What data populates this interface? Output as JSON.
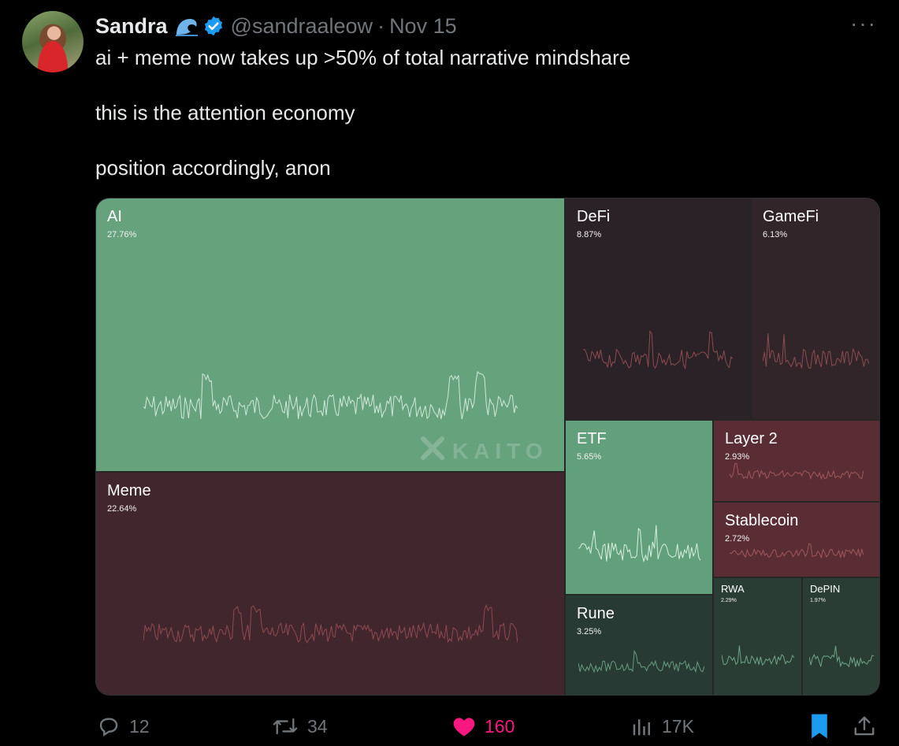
{
  "tweet": {
    "author_name": "Sandra",
    "handle": "@sandraaleow",
    "separator": "·",
    "date": "Nov 15",
    "more_label": "···",
    "text_lines": [
      "ai + meme now takes up >50% of total narrative mindshare",
      "this is the attention economy",
      "position accordingly, anon"
    ],
    "icons": {
      "badge": "water-wave-icon",
      "verified": "verified-badge-icon"
    }
  },
  "treemap": {
    "watermark": "KAITO",
    "tiles": [
      {
        "name": "AI",
        "pct": "27.76%",
        "value": 27.76,
        "color": "#66a37d",
        "line": "#cfe9d8"
      },
      {
        "name": "Meme",
        "pct": "22.64%",
        "value": 22.64,
        "color": "#42262d",
        "line": "#8e4a50"
      },
      {
        "name": "DeFi",
        "pct": "8.87%",
        "value": 8.87,
        "color": "#2b2227",
        "line": "#8a4c50"
      },
      {
        "name": "GameFi",
        "pct": "6.13%",
        "value": 6.13,
        "color": "#32252a",
        "line": "#8a4c50"
      },
      {
        "name": "ETF",
        "pct": "5.65%",
        "value": 5.65,
        "color": "#62a07b",
        "line": "#d7efe0"
      },
      {
        "name": "Layer 2",
        "pct": "2.93%",
        "value": 2.93,
        "color": "#5a2d34",
        "line": "#a0585c"
      },
      {
        "name": "Stablecoin",
        "pct": "2.72%",
        "value": 2.72,
        "color": "#5a2d34",
        "line": "#a0585c"
      },
      {
        "name": "Rune",
        "pct": "3.25%",
        "value": 3.25,
        "color": "#273a33",
        "line": "#6a9b80"
      },
      {
        "name": "RWA",
        "pct": "2.29%",
        "value": 2.29,
        "color": "#2a3d35",
        "line": "#6fa487"
      },
      {
        "name": "DePIN",
        "pct": "1.97%",
        "value": 1.97,
        "color": "#2a3d35",
        "line": "#6fa487"
      }
    ]
  },
  "actions": {
    "replies": "12",
    "reposts": "34",
    "likes": "160",
    "views": "17K",
    "like_color": "#f91880",
    "bookmark_color": "#1d9bf0"
  }
}
